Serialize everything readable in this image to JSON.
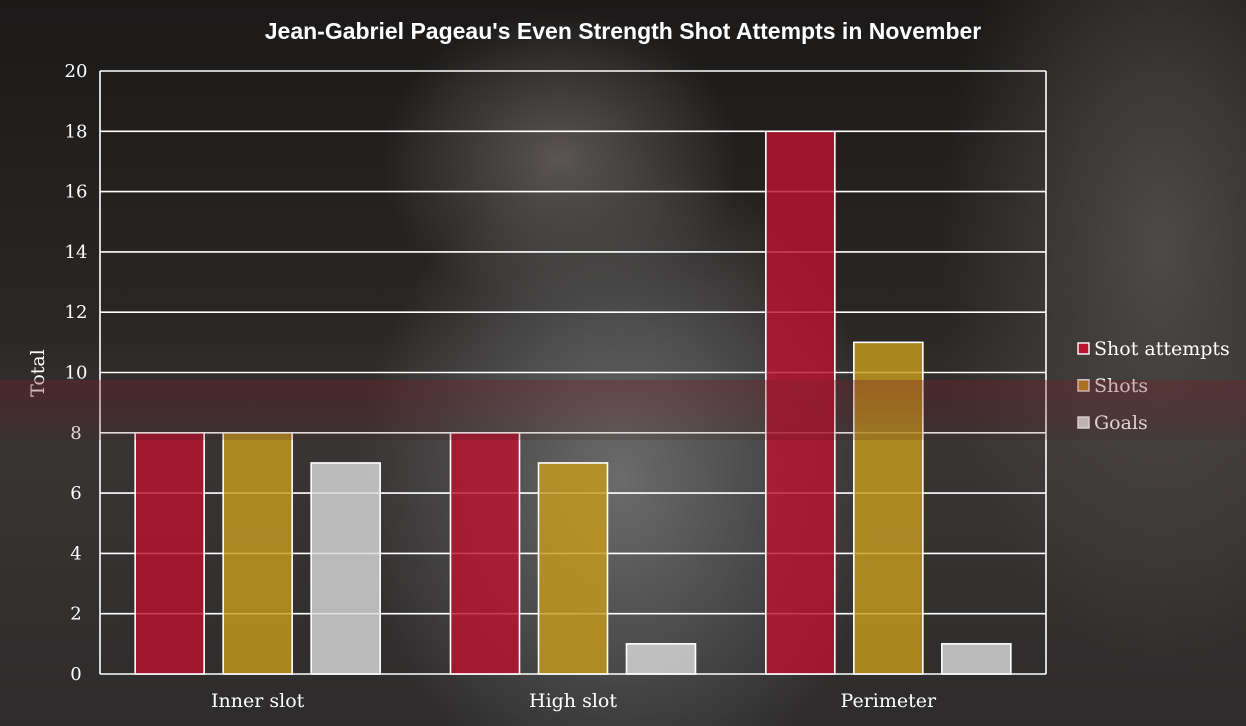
{
  "chart_data": {
    "type": "bar",
    "title": "Jean-Gabriel Pageau's Even Strength Shot Attempts in November",
    "xlabel": "",
    "ylabel": "Total",
    "ylim": [
      0,
      20
    ],
    "yticks": [
      0,
      2,
      4,
      6,
      8,
      10,
      12,
      14,
      16,
      18,
      20
    ],
    "grid": true,
    "legend_position": "right",
    "categories": [
      "Inner slot",
      "High slot",
      "Perimeter"
    ],
    "series": [
      {
        "name": "Shot attempts",
        "values": [
          8,
          8,
          18
        ],
        "color": "#b8142e"
      },
      {
        "name": "Shots",
        "values": [
          8,
          7,
          11
        ],
        "color": "#c69a1e"
      },
      {
        "name": "Goals",
        "values": [
          7,
          1,
          1
        ],
        "color": "#d9d9d9"
      }
    ]
  }
}
